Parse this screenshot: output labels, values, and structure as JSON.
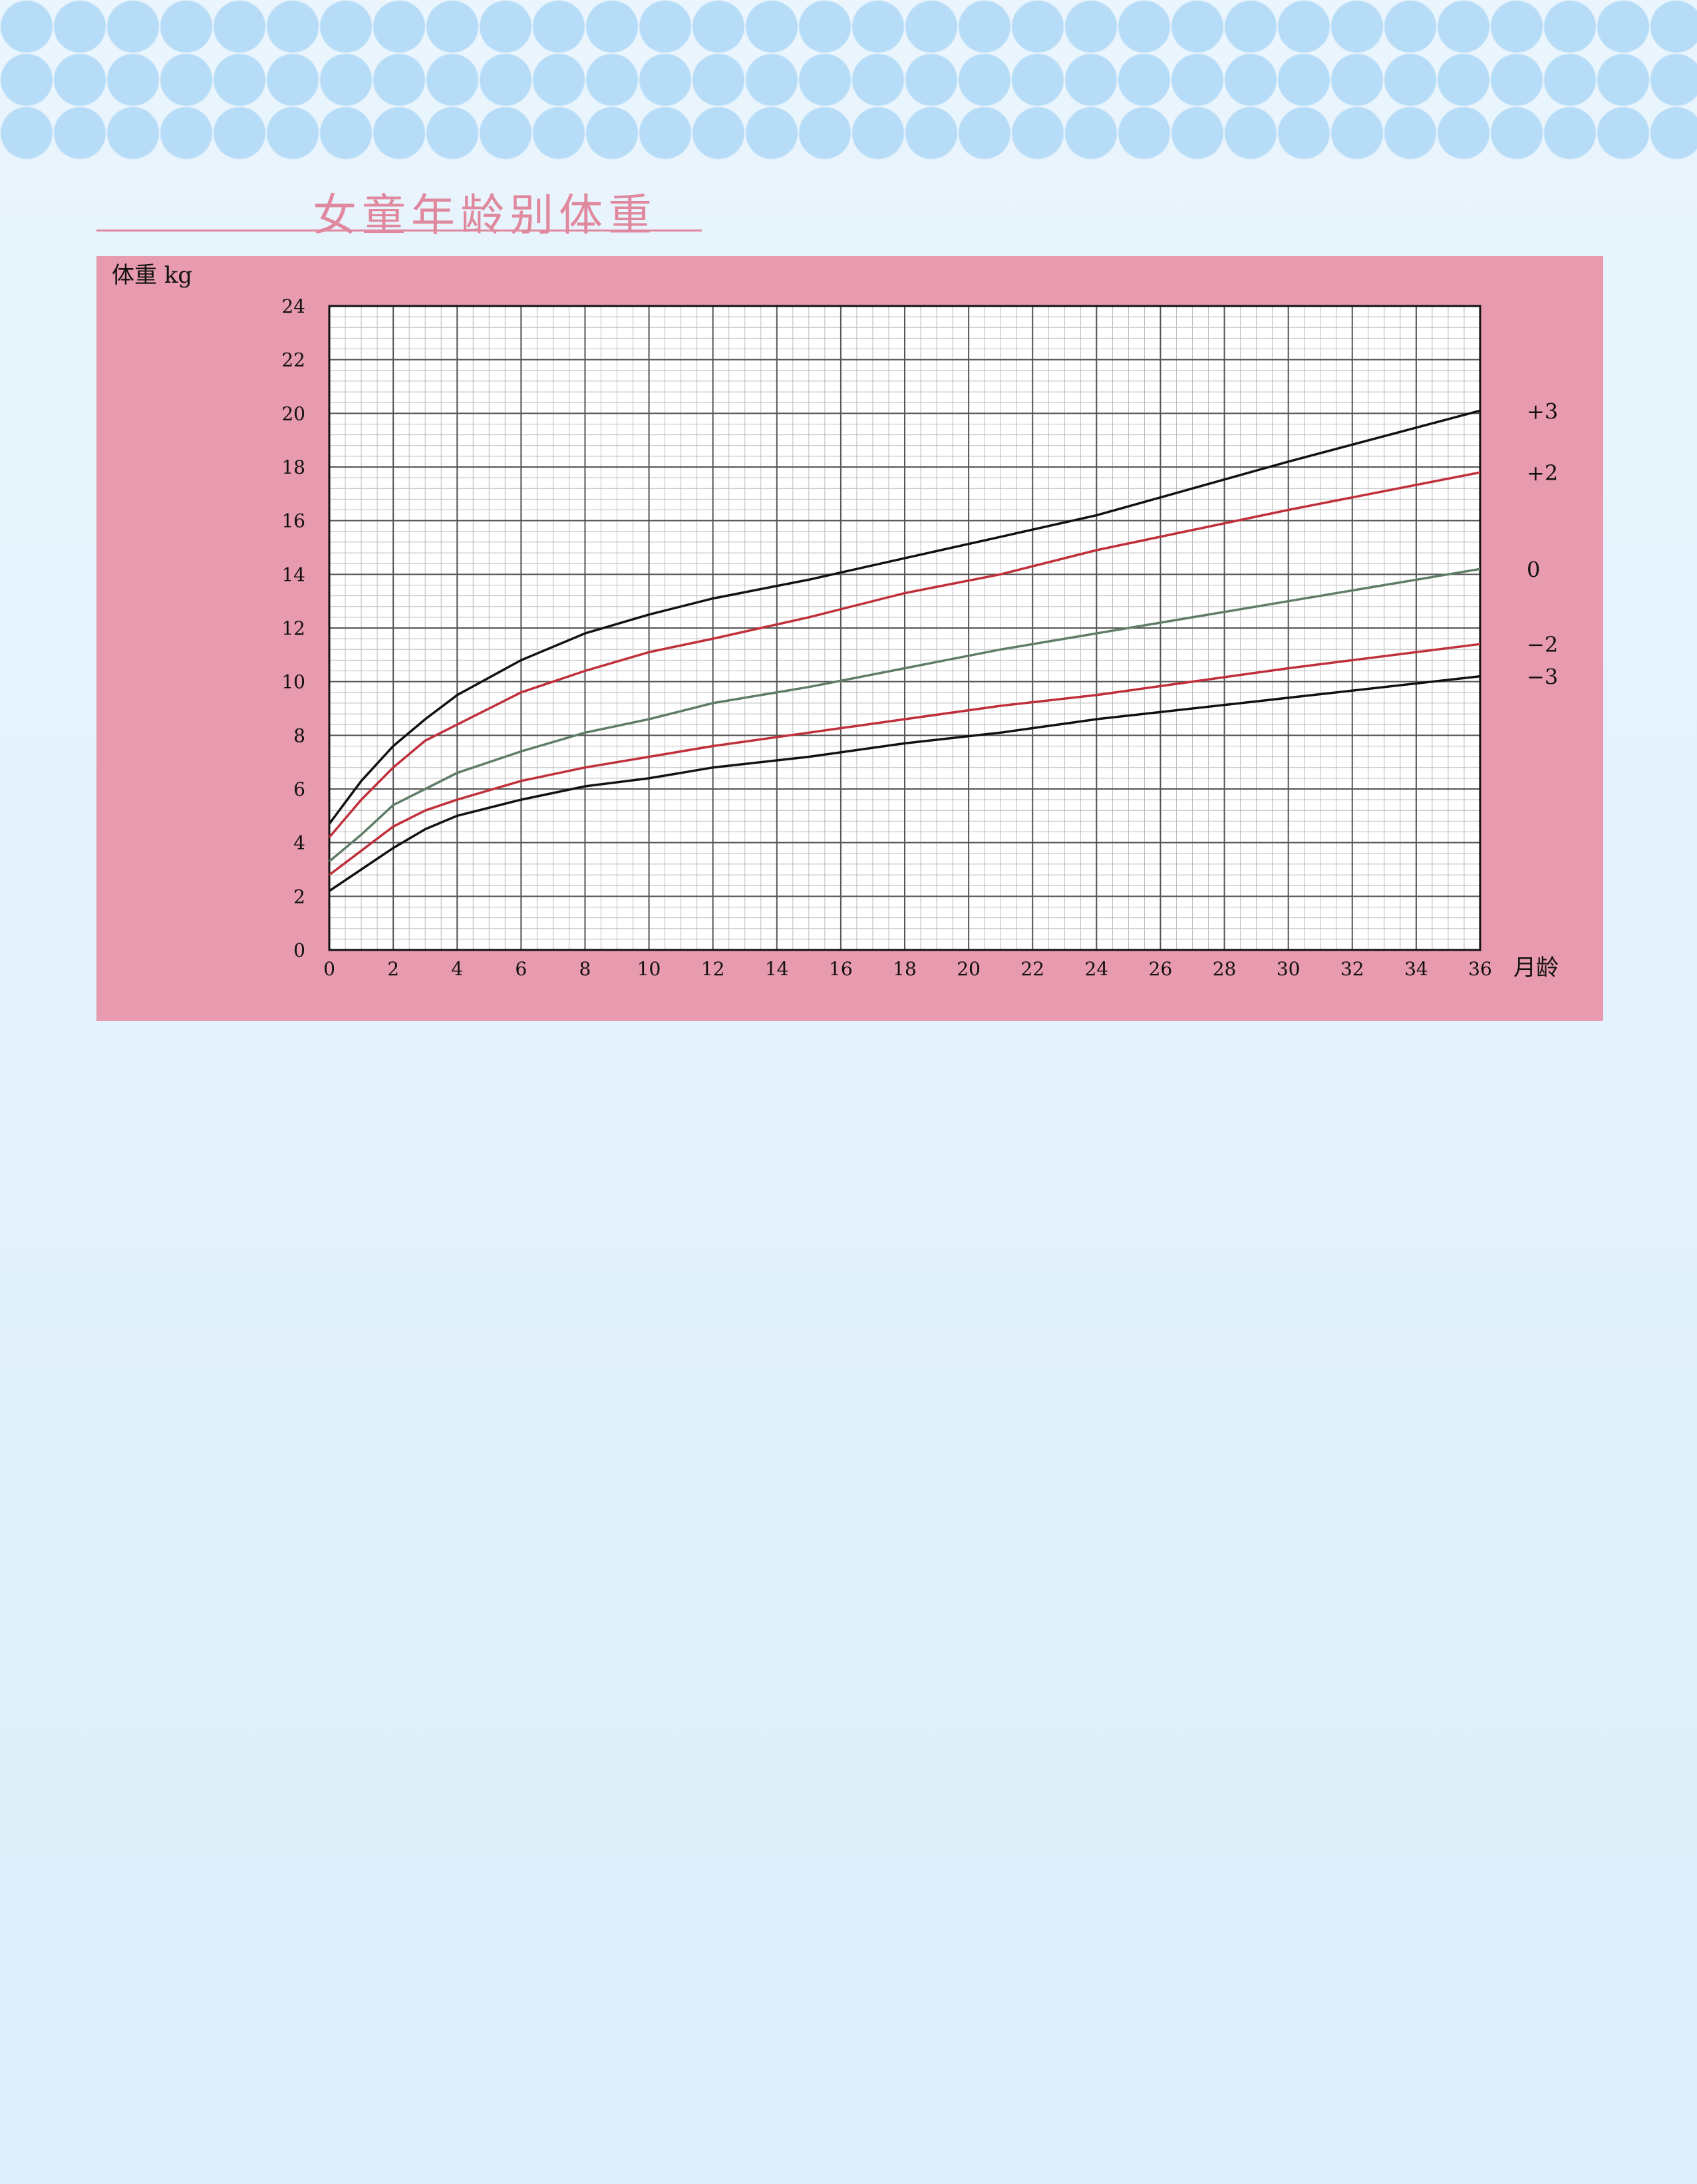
{
  "title": "女童年龄别体重",
  "chart_data": {
    "type": "line",
    "ylabel": "体重 kg",
    "xlabel": "月龄",
    "xlim": [
      0,
      36
    ],
    "ylim": [
      0,
      24
    ],
    "x_ticks": [
      0,
      2,
      4,
      6,
      8,
      10,
      12,
      14,
      16,
      18,
      20,
      22,
      24,
      26,
      28,
      30,
      32,
      34,
      36
    ],
    "y_ticks": [
      0,
      2,
      4,
      6,
      8,
      10,
      12,
      14,
      16,
      18,
      20,
      22,
      24
    ],
    "x": [
      0,
      1,
      2,
      3,
      4,
      6,
      8,
      10,
      12,
      15,
      18,
      21,
      24,
      30,
      36
    ],
    "series": [
      {
        "name": "+3",
        "color": "#111111",
        "values": [
          4.7,
          6.3,
          7.6,
          8.6,
          9.5,
          10.8,
          11.8,
          12.5,
          13.1,
          13.8,
          14.6,
          15.4,
          16.2,
          18.2,
          20.1
        ]
      },
      {
        "name": "+2",
        "color": "#c0303a",
        "values": [
          4.2,
          5.6,
          6.8,
          7.8,
          8.4,
          9.6,
          10.4,
          11.1,
          11.6,
          12.4,
          13.3,
          14.0,
          14.9,
          16.4,
          17.8
        ]
      },
      {
        "name": "0",
        "color": "#5f7d66",
        "values": [
          3.3,
          4.3,
          5.4,
          6.0,
          6.6,
          7.4,
          8.1,
          8.6,
          9.2,
          9.8,
          10.5,
          11.2,
          11.8,
          13.0,
          14.2
        ]
      },
      {
        "name": "−2",
        "color": "#c0303a",
        "values": [
          2.8,
          3.7,
          4.6,
          5.2,
          5.6,
          6.3,
          6.8,
          7.2,
          7.6,
          8.1,
          8.6,
          9.1,
          9.5,
          10.5,
          11.4
        ]
      },
      {
        "name": "−3",
        "color": "#111111",
        "values": [
          2.2,
          3.0,
          3.8,
          4.5,
          5.0,
          5.6,
          6.1,
          6.4,
          6.8,
          7.2,
          7.7,
          8.1,
          8.6,
          9.4,
          10.2
        ]
      }
    ]
  }
}
